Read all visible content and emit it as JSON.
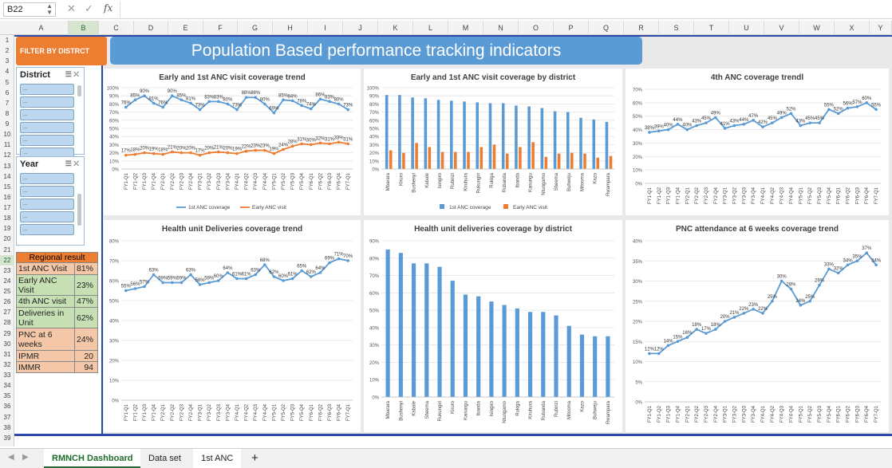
{
  "formula_bar": {
    "name_box": "B22",
    "cancel_icon": "✕",
    "enter_icon": "✓",
    "fx_label": "fx"
  },
  "columns": [
    "A",
    "B",
    "C",
    "D",
    "E",
    "F",
    "G",
    "H",
    "I",
    "J",
    "K",
    "L",
    "M",
    "N",
    "O",
    "P",
    "Q",
    "R",
    "S",
    "T",
    "U",
    "V",
    "W",
    "X",
    "Y"
  ],
  "rows": [
    "1",
    "2",
    "3",
    "4",
    "5",
    "6",
    "7",
    "8",
    "9",
    "10",
    "11",
    "12",
    "13",
    "14",
    "15",
    "16",
    "17",
    "18",
    "19",
    "20",
    "21",
    "22",
    "23",
    "24",
    "25",
    "26",
    "27",
    "28",
    "29",
    "30",
    "31",
    "32",
    "33",
    "34",
    "35",
    "36",
    "37",
    "38",
    "39"
  ],
  "filter_button": "FILTER BY DISTRCT",
  "dashboard_title": "Population Based performance tracking indicators",
  "slicers": {
    "district": {
      "title": "District",
      "items": [
        "...",
        "...",
        "...",
        "...",
        "...",
        "..."
      ]
    },
    "year": {
      "title": "Year",
      "items": [
        "...",
        "...",
        "...",
        "...",
        "..."
      ]
    }
  },
  "regional": {
    "header": "Regional result",
    "rows": [
      {
        "label": "1st ANC Visit",
        "value": "81%"
      },
      {
        "label": "Early ANC Visit",
        "value": "23%"
      },
      {
        "label": "4th ANC visit",
        "value": "47%"
      },
      {
        "label": "Deliveries in Unit",
        "value": "62%"
      },
      {
        "label": "PNC at 6 weeks",
        "value": "24%"
      },
      {
        "label": "IPMR",
        "value": "20"
      },
      {
        "label": "IMMR",
        "value": "94"
      }
    ]
  },
  "colors": {
    "blue": "#5b9bd5",
    "orange": "#ed7d31",
    "accent_line": "#2f49a8",
    "tab_green": "#1e6b2c"
  },
  "sheet_tabs": [
    {
      "label": "RMNCH Dashboard",
      "active": true
    },
    {
      "label": "Data set",
      "active": false
    },
    {
      "label": "1st ANC",
      "active": false
    }
  ],
  "add_sheet": "+",
  "chart_data": [
    {
      "id": "c1",
      "type": "line",
      "title": "Early and 1st ANC visit coverage trend",
      "categories": [
        "FY1-Q1",
        "FY1-Q2",
        "FY1-Q3",
        "FY1-Q4",
        "FY2-Q1",
        "FY2-Q2",
        "FY2-Q3",
        "FY2-Q4",
        "FY3-Q1",
        "FY3-Q2",
        "FY3-Q3",
        "FY3-Q4",
        "FY4-Q1",
        "FY4-Q2",
        "FY4-Q3",
        "FY4-Q4",
        "FY5-Q1",
        "FY5-Q2",
        "FY5-Q3",
        "FY5-Q4",
        "FY6-Q1",
        "FY6-Q2",
        "FY6-Q3",
        "FY6-Q4",
        "FY7-Q1"
      ],
      "series": [
        {
          "name": "1st ANC coverage",
          "color": "#5b9bd5",
          "values": [
            76,
            85,
            90,
            81,
            76,
            90,
            85,
            81,
            73,
            83,
            83,
            80,
            73,
            88,
            88,
            80,
            69,
            85,
            84,
            78,
            74,
            86,
            83,
            80,
            73
          ]
        },
        {
          "name": "Early ANC visit",
          "color": "#ed7d31",
          "values": [
            17,
            18,
            20,
            19,
            18,
            21,
            20,
            20,
            17,
            20,
            21,
            20,
            19,
            22,
            23,
            23,
            19,
            24,
            28,
            31,
            30,
            32,
            31,
            33,
            31
          ]
        }
      ],
      "ylim": [
        0,
        100
      ],
      "yticks": [
        0,
        10,
        20,
        30,
        40,
        50,
        60,
        70,
        80,
        90,
        100
      ],
      "legend": "bottom"
    },
    {
      "id": "c2",
      "type": "bar",
      "title": "Early and 1st ANC visit coverage by district",
      "categories": [
        "Mbarara",
        "Kiruro",
        "Bushenyi",
        "Kabale",
        "Isingiro",
        "Rubirizi",
        "Kiruhura",
        "Rukungiri",
        "Rukiga",
        "Rubanda",
        "Ibanda",
        "Kanungu",
        "Ntungamo",
        "Sheema",
        "Buhweju",
        "Mitooma",
        "Kazo",
        "Rwampara"
      ],
      "series": [
        {
          "name": "1st ANC coverage",
          "color": "#5b9bd5",
          "values": [
            91,
            91,
            88,
            87,
            85,
            84,
            83,
            82,
            81,
            81,
            78,
            77,
            75,
            71,
            70,
            63,
            61,
            58
          ]
        },
        {
          "name": "Early ANC visit",
          "color": "#ed7d31",
          "values": [
            23,
            20,
            32,
            27,
            21,
            21,
            21,
            27,
            30,
            19,
            27,
            33,
            15,
            19,
            20,
            19,
            14,
            16
          ]
        }
      ],
      "ylim": [
        0,
        100
      ],
      "yticks": [
        0,
        10,
        20,
        30,
        40,
        50,
        60,
        70,
        80,
        90,
        100
      ],
      "legend": "bottom"
    },
    {
      "id": "c3",
      "type": "line",
      "title": "4th ANC coverage trendl",
      "categories": [
        "FY1-Q1",
        "FY1-Q2",
        "FY1-Q3",
        "FY1-Q4",
        "FY2-Q1",
        "FY2-Q2",
        "FY2-Q3",
        "FY2-Q4",
        "FY3-Q1",
        "FY3-Q2",
        "FY3-Q3",
        "FY3-Q4",
        "FY4-Q1",
        "FY4-Q2",
        "FY4-Q3",
        "FY4-Q4",
        "FY5-Q1",
        "FY5-Q2",
        "FY5-Q3",
        "FY5-Q4",
        "FY6-Q1",
        "FY6-Q2",
        "FY6-Q3",
        "FY6-Q4",
        "FY7-Q1"
      ],
      "series": [
        {
          "name": "4th ANC",
          "color": "#5b9bd5",
          "values": [
            38,
            39,
            40,
            44,
            40,
            43,
            45,
            49,
            41,
            43,
            44,
            47,
            42,
            45,
            49,
            52,
            43,
            45,
            45,
            55,
            52,
            56,
            57,
            60,
            55
          ]
        }
      ],
      "ylim": [
        0,
        70
      ],
      "yticks": [
        0,
        10,
        20,
        30,
        40,
        50,
        60,
        70
      ]
    },
    {
      "id": "c4",
      "type": "line",
      "title": "Health unit Deliveries coverage trend",
      "categories": [
        "FY1-Q1",
        "FY1-Q2",
        "FY1-Q3",
        "FY1-Q4",
        "FY2-Q1",
        "FY2-Q2",
        "FY2-Q3",
        "FY2-Q4",
        "FY3-Q1",
        "FY3-Q2",
        "FY3-Q3",
        "FY3-Q4",
        "FY4-Q1",
        "FY4-Q2",
        "FY4-Q3",
        "FY4-Q4",
        "FY5-Q1",
        "FY5-Q2",
        "FY5-Q3",
        "FY5-Q4",
        "FY6-Q1",
        "FY6-Q2",
        "FY6-Q3",
        "FY6-Q4",
        "FY7-Q1"
      ],
      "series": [
        {
          "name": "Deliveries",
          "color": "#5b9bd5",
          "values": [
            55,
            56,
            57,
            63,
            59,
            59,
            59,
            63,
            58,
            59,
            60,
            64,
            61,
            61,
            63,
            68,
            62,
            60,
            61,
            65,
            62,
            64,
            69,
            71,
            70
          ]
        }
      ],
      "ylim": [
        0,
        80
      ],
      "yticks": [
        0,
        10,
        20,
        30,
        40,
        50,
        60,
        70,
        80
      ]
    },
    {
      "id": "c5",
      "type": "bar",
      "title": "Health unit deliveries coverage by district",
      "categories": [
        "Mbarara",
        "Bushenyi",
        "Kabale",
        "Sheema",
        "Rukungiri",
        "Kiruro",
        "Kanungu",
        "Ibanda",
        "Isingiro",
        "Ntungamo",
        "Rukiga",
        "Kiruhura",
        "Rubanda",
        "Rubirizi",
        "Mitooma",
        "Kazo",
        "Buhweju",
        "Rwampara"
      ],
      "series": [
        {
          "name": "Deliveries",
          "color": "#5b9bd5",
          "values": [
            85,
            83,
            77,
            77,
            75,
            67,
            59,
            58,
            55,
            53,
            51,
            49,
            49,
            47,
            41,
            36,
            35,
            35
          ]
        }
      ],
      "ylim": [
        0,
        90
      ],
      "yticks": [
        0,
        10,
        20,
        30,
        40,
        50,
        60,
        70,
        80,
        90
      ]
    },
    {
      "id": "c6",
      "type": "line",
      "title": "PNC attendance at 6 weeks coverage trend",
      "categories": [
        "FY1-Q1",
        "FY1-Q2",
        "FY1-Q3",
        "FY1-Q4",
        "FY2-Q1",
        "FY2-Q2",
        "FY2-Q3",
        "FY2-Q4",
        "FY3-Q1",
        "FY3-Q2",
        "FY3-Q3",
        "FY3-Q4",
        "FY4-Q1",
        "FY4-Q2",
        "FY4-Q3",
        "FY4-Q4",
        "FY5-Q1",
        "FY5-Q2",
        "FY5-Q3",
        "FY5-Q4",
        "FY6-Q1",
        "FY6-Q2",
        "FY6-Q3",
        "FY6-Q4",
        "FY7-Q1"
      ],
      "series": [
        {
          "name": "PNC",
          "color": "#5b9bd5",
          "values": [
            12,
            12,
            14,
            15,
            16,
            18,
            17,
            18,
            20,
            21,
            22,
            23,
            22,
            25,
            30,
            28,
            24,
            25,
            29,
            33,
            32,
            34,
            35,
            37,
            34
          ]
        }
      ],
      "ylim": [
        0,
        40
      ],
      "yticks": [
        0,
        5,
        10,
        15,
        20,
        25,
        30,
        35,
        40
      ]
    }
  ]
}
